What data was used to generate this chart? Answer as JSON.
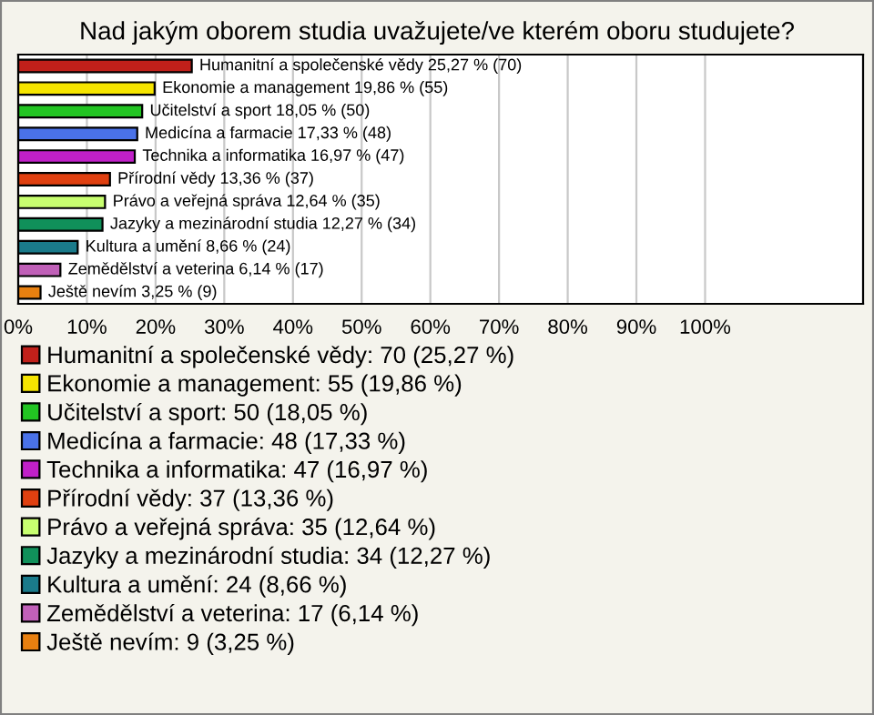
{
  "chart_data": {
    "type": "bar",
    "orientation": "horizontal",
    "title": "Nad jakým oborem studia uvažujete/ve kterém oboru studujete?",
    "categories": [
      null,
      null,
      null,
      null,
      null,
      null,
      null,
      null,
      null,
      null,
      null
    ],
    "series": [
      {
        "name": "Humanitní a společenské vědy: 70 (25,27 %)",
        "color": "#c0201a",
        "values": [
          25.27,
          null,
          null,
          null,
          null,
          null,
          null,
          null,
          null,
          null,
          null
        ],
        "value_labels": [
          "Humanitní a společenské vědy 25,27 % (70)",
          null,
          null,
          null,
          null,
          null,
          null,
          null,
          null,
          null,
          null
        ]
      },
      {
        "name": "Ekonomie a management: 55 (19,86 %)",
        "color": "#f5e400",
        "values": [
          null,
          19.86,
          null,
          null,
          null,
          null,
          null,
          null,
          null,
          null,
          null
        ],
        "value_labels": [
          null,
          "Ekonomie a management 19,86 % (55)",
          null,
          null,
          null,
          null,
          null,
          null,
          null,
          null,
          null
        ]
      },
      {
        "name": "Učitelství a sport: 50 (18,05 %)",
        "color": "#22c422",
        "values": [
          null,
          null,
          18.05,
          null,
          null,
          null,
          null,
          null,
          null,
          null,
          null
        ],
        "value_labels": [
          null,
          null,
          "Učitelství a sport 18,05 % (50)",
          null,
          null,
          null,
          null,
          null,
          null,
          null,
          null
        ]
      },
      {
        "name": "Medicína a farmacie: 48 (17,33 %)",
        "color": "#4a72e8",
        "values": [
          null,
          null,
          null,
          17.33,
          null,
          null,
          null,
          null,
          null,
          null,
          null
        ],
        "value_labels": [
          null,
          null,
          null,
          "Medicína a farmacie 17,33 % (48)",
          null,
          null,
          null,
          null,
          null,
          null,
          null
        ]
      },
      {
        "name": "Technika a informatika: 47 (16,97 %)",
        "color": "#c020c8",
        "values": [
          null,
          null,
          null,
          null,
          16.97,
          null,
          null,
          null,
          null,
          null,
          null
        ],
        "value_labels": [
          null,
          null,
          null,
          null,
          "Technika a informatika 16,97 % (47)",
          null,
          null,
          null,
          null,
          null,
          null
        ]
      },
      {
        "name": "Přírodní vědy: 37 (13,36 %)",
        "color": "#e04010",
        "values": [
          null,
          null,
          null,
          null,
          null,
          13.36,
          null,
          null,
          null,
          null,
          null
        ],
        "value_labels": [
          null,
          null,
          null,
          null,
          null,
          "Přírodní vědy 13,36 % (37)",
          null,
          null,
          null,
          null,
          null
        ]
      },
      {
        "name": "Právo a veřejná správa: 35 (12,64 %)",
        "color": "#c8ff70",
        "values": [
          null,
          null,
          null,
          null,
          null,
          null,
          12.64,
          null,
          null,
          null,
          null
        ],
        "value_labels": [
          null,
          null,
          null,
          null,
          null,
          null,
          "Právo a veřejná správa 12,64 % (35)",
          null,
          null,
          null,
          null
        ]
      },
      {
        "name": "Jazyky a mezinárodní studia: 34 (12,27 %)",
        "color": "#10905a",
        "values": [
          null,
          null,
          null,
          null,
          null,
          null,
          null,
          12.27,
          null,
          null,
          null
        ],
        "value_labels": [
          null,
          null,
          null,
          null,
          null,
          null,
          null,
          "Jazyky a mezinárodní studia 12,27 % (34)",
          null,
          null,
          null
        ]
      },
      {
        "name": "Kultura a umění: 24 (8,66 %)",
        "color": "#1a7a8a",
        "values": [
          null,
          null,
          null,
          null,
          null,
          null,
          null,
          null,
          8.66,
          null,
          null
        ],
        "value_labels": [
          null,
          null,
          null,
          null,
          null,
          null,
          null,
          null,
          "Kultura a umění 8,66 % (24)",
          null,
          null
        ]
      },
      {
        "name": "Zemědělství a veterina: 17 (6,14 %)",
        "color": "#c060b8",
        "values": [
          null,
          null,
          null,
          null,
          null,
          null,
          null,
          null,
          null,
          6.14,
          null
        ],
        "value_labels": [
          null,
          null,
          null,
          null,
          null,
          null,
          null,
          null,
          null,
          "Zemědělství a veterina 6,14 % (17)",
          null
        ]
      },
      {
        "name": "Ještě nevím: 9 (3,25 %)",
        "color": "#e88010",
        "values": [
          null,
          null,
          null,
          null,
          null,
          null,
          null,
          null,
          null,
          null,
          3.25
        ],
        "value_labels": [
          null,
          null,
          null,
          null,
          null,
          null,
          null,
          null,
          null,
          null,
          "Ještě nevím 3,25 % (9)"
        ]
      }
    ],
    "xlim": [
      0,
      123
    ],
    "xticks": [
      {
        "value": 0,
        "label": "0%"
      },
      {
        "value": 10,
        "label": "10%"
      },
      {
        "value": 20,
        "label": "20%"
      },
      {
        "value": 30,
        "label": "30%"
      },
      {
        "value": 40,
        "label": "40%"
      },
      {
        "value": 50,
        "label": "50%"
      },
      {
        "value": 60,
        "label": "60%"
      },
      {
        "value": 70,
        "label": "70%"
      },
      {
        "value": 80,
        "label": "80%"
      },
      {
        "value": 90,
        "label": "90%"
      },
      {
        "value": 100,
        "label": "100%"
      }
    ],
    "grid": "x",
    "legend": "bottom"
  }
}
